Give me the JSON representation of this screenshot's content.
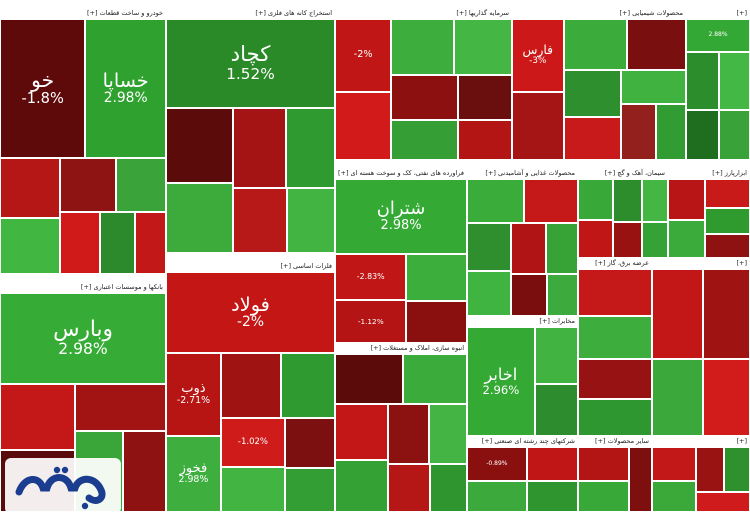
{
  "chart_data": {
    "type": "treemap",
    "sectors": [
      {
        "name": "خودرو و ساخت قطعات",
        "label": "خودرو و ساخت قطعات [+]",
        "box": "a",
        "stocks": [
          {
            "name": "خو",
            "change": "-1.8%",
            "color": "#5e0a0a",
            "big": true
          },
          {
            "name": "خساپا",
            "change": "2.98%",
            "color": "#2ea12e",
            "big": true
          },
          {
            "name": "",
            "change": "",
            "color": "#b51616"
          },
          {
            "name": "",
            "change": "",
            "color": "#41b641"
          },
          {
            "name": "",
            "change": "",
            "color": "#8e1414"
          },
          {
            "name": "",
            "change": "",
            "color": "#3aa43a"
          },
          {
            "name": "",
            "change": "",
            "color": "#d01a1a"
          },
          {
            "name": "",
            "change": "",
            "color": "#2c8a2c"
          },
          {
            "name": "",
            "change": "",
            "color": "#c21818"
          }
        ]
      },
      {
        "name": "استخراج کانه های فلزی",
        "label": "استخراج کانه های فلزی [+]",
        "box": "b",
        "stocks": [
          {
            "name": "کچاد",
            "change": "1.52%",
            "color": "#2a8a28",
            "big": true
          },
          {
            "name": "",
            "change": "",
            "color": "#5c0b0b"
          },
          {
            "name": "",
            "change": "",
            "color": "#3cab3c"
          },
          {
            "name": "",
            "change": "",
            "color": "#a41414"
          },
          {
            "name": "",
            "change": "",
            "color": "#2f9a2f"
          },
          {
            "name": "",
            "change": "",
            "color": "#b71818"
          },
          {
            "name": "",
            "change": "",
            "color": "#42b442"
          }
        ]
      },
      {
        "name": "سرمایه گذاریها",
        "label": "سرمایه گذاریها [+]",
        "box": "c",
        "stocks": [
          {
            "name": "",
            "change": "-2%",
            "color": "#c01616"
          },
          {
            "name": "",
            "change": "",
            "color": "#d21a1a"
          },
          {
            "name": "",
            "change": "",
            "color": "#3dad3d"
          },
          {
            "name": "",
            "change": "",
            "color": "#44b644"
          },
          {
            "name": "",
            "change": "",
            "color": "#8c1010"
          },
          {
            "name": "",
            "change": "",
            "color": "#359f35"
          },
          {
            "name": "",
            "change": "",
            "color": "#6a0e0e"
          },
          {
            "name": "",
            "change": "",
            "color": "#b31414"
          }
        ]
      },
      {
        "name": "محصولات شیمیایی",
        "label": "محصولات شیمیایی [+]",
        "box": "d",
        "stocks": [
          {
            "name": "فارس",
            "change": "-3%",
            "color": "#cc1818"
          },
          {
            "name": "",
            "change": "",
            "color": "#a61515"
          },
          {
            "name": "",
            "change": "",
            "color": "#3bab3b"
          },
          {
            "name": "",
            "change": "",
            "color": "#7a0f0f"
          },
          {
            "name": "",
            "change": "",
            "color": "#2e8f2e"
          },
          {
            "name": "",
            "change": "",
            "color": "#c81a1a"
          },
          {
            "name": "",
            "change": "",
            "color": "#40b240"
          },
          {
            "name": "",
            "change": "",
            "color": "#93201c"
          },
          {
            "name": "",
            "change": "",
            "color": "#319c31"
          }
        ]
      },
      {
        "name": "",
        "label": "[+]",
        "box": "e",
        "stocks": [
          {
            "name": "",
            "change": "2.88%",
            "color": "#34a834"
          },
          {
            "name": "",
            "change": "",
            "color": "#2b8d2b"
          },
          {
            "name": "",
            "change": "",
            "color": "#44b844"
          },
          {
            "name": "",
            "change": "",
            "color": "#1f6e1f"
          },
          {
            "name": "",
            "change": "",
            "color": "#39a339"
          }
        ]
      },
      {
        "name": "بانکها و موسسات اعتباری",
        "label": "بانکها و موسسات اعتباری [+]",
        "box": "f",
        "stocks": [
          {
            "name": "وبارس",
            "change": "2.98%",
            "color": "#36ac36",
            "big": true
          },
          {
            "name": "",
            "change": "",
            "color": "#c41818"
          },
          {
            "name": "",
            "change": "",
            "color": "#5a0c0c"
          },
          {
            "name": "",
            "change": "",
            "color": "#a21414"
          },
          {
            "name": "",
            "change": "",
            "color": "#3aa63a"
          },
          {
            "name": "",
            "change": "",
            "color": "#8e1212"
          }
        ]
      },
      {
        "name": "فلزات اساسی",
        "label": "فلزات اساسی [+]",
        "box": "g",
        "stocks": [
          {
            "name": "فولاد",
            "change": "-2%",
            "color": "#c51616",
            "big": true
          },
          {
            "name": "ذوب",
            "change": "-2.71%",
            "color": "#b71414"
          },
          {
            "name": "فخوز",
            "change": "2.98%",
            "color": "#3eaf3e"
          },
          {
            "name": "",
            "change": "",
            "color": "#a01313"
          },
          {
            "name": "",
            "change": "",
            "color": "#2f9a2f"
          },
          {
            "name": "",
            "change": "-1.02%",
            "color": "#d01b1b"
          },
          {
            "name": "",
            "change": "",
            "color": "#42b442"
          },
          {
            "name": "",
            "change": "",
            "color": "#7c0f0f"
          },
          {
            "name": "",
            "change": "",
            "color": "#339e33"
          }
        ]
      },
      {
        "name": "فراورده های نفتی، کک و سوخت هسته ای",
        "label": "فراورده های نفتی، کک و سوخت هسته ای [+]",
        "box": "h",
        "stocks": [
          {
            "name": "شتران",
            "change": "2.98%",
            "color": "#34aa34",
            "big": true
          },
          {
            "name": "",
            "change": "-2.83%",
            "color": "#c01616"
          },
          {
            "name": "",
            "change": "-1.12%",
            "color": "#b41414"
          },
          {
            "name": "",
            "change": "",
            "color": "#3cae3c"
          },
          {
            "name": "",
            "change": "",
            "color": "#8a1010"
          }
        ]
      },
      {
        "name": "محصولات غذایی و آشامیدنی",
        "label": "محصولات غذایی و آشامیدنی [+]",
        "box": "i",
        "stocks": [
          {
            "name": "",
            "change": "",
            "color": "#3aac3a"
          },
          {
            "name": "",
            "change": "",
            "color": "#c51818"
          },
          {
            "name": "",
            "change": "",
            "color": "#2f8f2f"
          },
          {
            "name": "",
            "change": "",
            "color": "#40b440"
          },
          {
            "name": "",
            "change": "",
            "color": "#b01414"
          },
          {
            "name": "",
            "change": "",
            "color": "#37a337"
          },
          {
            "name": "",
            "change": "",
            "color": "#7a0e0e"
          },
          {
            "name": "",
            "change": "",
            "color": "#3caa3c"
          }
        ]
      },
      {
        "name": "سیمان، آهک و گچ",
        "label": "سیمان، آهک و گچ [+]",
        "box": "j",
        "stocks": [
          {
            "name": "",
            "change": "",
            "color": "#38a838"
          },
          {
            "name": "",
            "change": "",
            "color": "#c11616"
          },
          {
            "name": "",
            "change": "",
            "color": "#2d8d2d"
          },
          {
            "name": "",
            "change": "",
            "color": "#44b644"
          },
          {
            "name": "",
            "change": "",
            "color": "#981212"
          },
          {
            "name": "",
            "change": "",
            "color": "#34a234"
          }
        ]
      },
      {
        "name": "ابزارپارز",
        "label": "ابزارپارز [+]",
        "box": "k",
        "stocks": [
          {
            "name": "",
            "change": "",
            "color": "#b81616"
          },
          {
            "name": "",
            "change": "",
            "color": "#3bab3b"
          },
          {
            "name": "",
            "change": "",
            "color": "#c91a1a"
          },
          {
            "name": "",
            "change": "",
            "color": "#2f9b2f"
          },
          {
            "name": "",
            "change": "",
            "color": "#8e1212"
          }
        ]
      },
      {
        "name": "عرضه برق، گاز",
        "label": "عرضه برق، گاز [+]",
        "box": "l",
        "stocks": [
          {
            "name": "",
            "change": "",
            "color": "#c51818"
          },
          {
            "name": "",
            "change": "",
            "color": "#3dae3d"
          },
          {
            "name": "",
            "change": "",
            "color": "#971212"
          },
          {
            "name": "",
            "change": "",
            "color": "#2f972f"
          }
        ]
      },
      {
        "name": "",
        "label": "[+]",
        "box": "m",
        "stocks": [
          {
            "name": "",
            "change": "",
            "color": "#c31616"
          },
          {
            "name": "",
            "change": "",
            "color": "#a01313"
          },
          {
            "name": "",
            "change": "",
            "color": "#3aa83a"
          },
          {
            "name": "",
            "change": "",
            "color": "#d21c1c"
          }
        ]
      },
      {
        "name": "مخابرات",
        "label": "مخابرات [+]",
        "box": "n",
        "stocks": [
          {
            "name": "اخابر",
            "change": "2.96%",
            "color": "#34aa34",
            "big": true
          },
          {
            "name": "",
            "change": "",
            "color": "#40b340"
          },
          {
            "name": "",
            "change": "",
            "color": "#2d8c2d"
          }
        ]
      },
      {
        "name": "انبوه سازی، املاک و مستغلات",
        "label": "انبوه سازی، املاک و مستغلات [+]",
        "box": "o",
        "stocks": [
          {
            "name": "",
            "change": "",
            "color": "#5c0b0b"
          },
          {
            "name": "",
            "change": "",
            "color": "#3bab3b"
          },
          {
            "name": "",
            "change": "",
            "color": "#c31616"
          },
          {
            "name": "",
            "change": "",
            "color": "#33a133"
          },
          {
            "name": "",
            "change": "",
            "color": "#8c1111"
          },
          {
            "name": "",
            "change": "",
            "color": "#44b544"
          },
          {
            "name": "",
            "change": "",
            "color": "#b51616"
          },
          {
            "name": "",
            "change": "",
            "color": "#2f962f"
          }
        ]
      },
      {
        "name": "شرکتهای چند رشته ای صنعتی",
        "label": "شرکتهای چند رشته ای صنعتی [+]",
        "box": "p",
        "stocks": [
          {
            "name": "",
            "change": "-0.89%",
            "color": "#8a1010"
          },
          {
            "name": "",
            "change": "",
            "color": "#3ba93b"
          },
          {
            "name": "",
            "change": "",
            "color": "#c01616"
          },
          {
            "name": "",
            "change": "",
            "color": "#2f962f"
          }
        ]
      },
      {
        "name": "سایر محصولات",
        "label": "سایر محصولات [+]",
        "box": "q",
        "stocks": [
          {
            "name": "",
            "change": "",
            "color": "#b31414"
          },
          {
            "name": "",
            "change": "",
            "color": "#38a838"
          },
          {
            "name": "",
            "change": "",
            "color": "#7e0f0f"
          }
        ]
      },
      {
        "name": "",
        "label": "[+]",
        "box": "r",
        "stocks": [
          {
            "name": "",
            "change": "",
            "color": "#c21818"
          },
          {
            "name": "",
            "change": "",
            "color": "#3aa93a"
          },
          {
            "name": "",
            "change": "",
            "color": "#9a1313"
          },
          {
            "name": "",
            "change": "",
            "color": "#2e912e"
          },
          {
            "name": "",
            "change": "",
            "color": "#cf1b1b"
          }
        ]
      }
    ]
  },
  "watermark": {
    "text": "نفتیا",
    "color": "#1b3d8f"
  }
}
